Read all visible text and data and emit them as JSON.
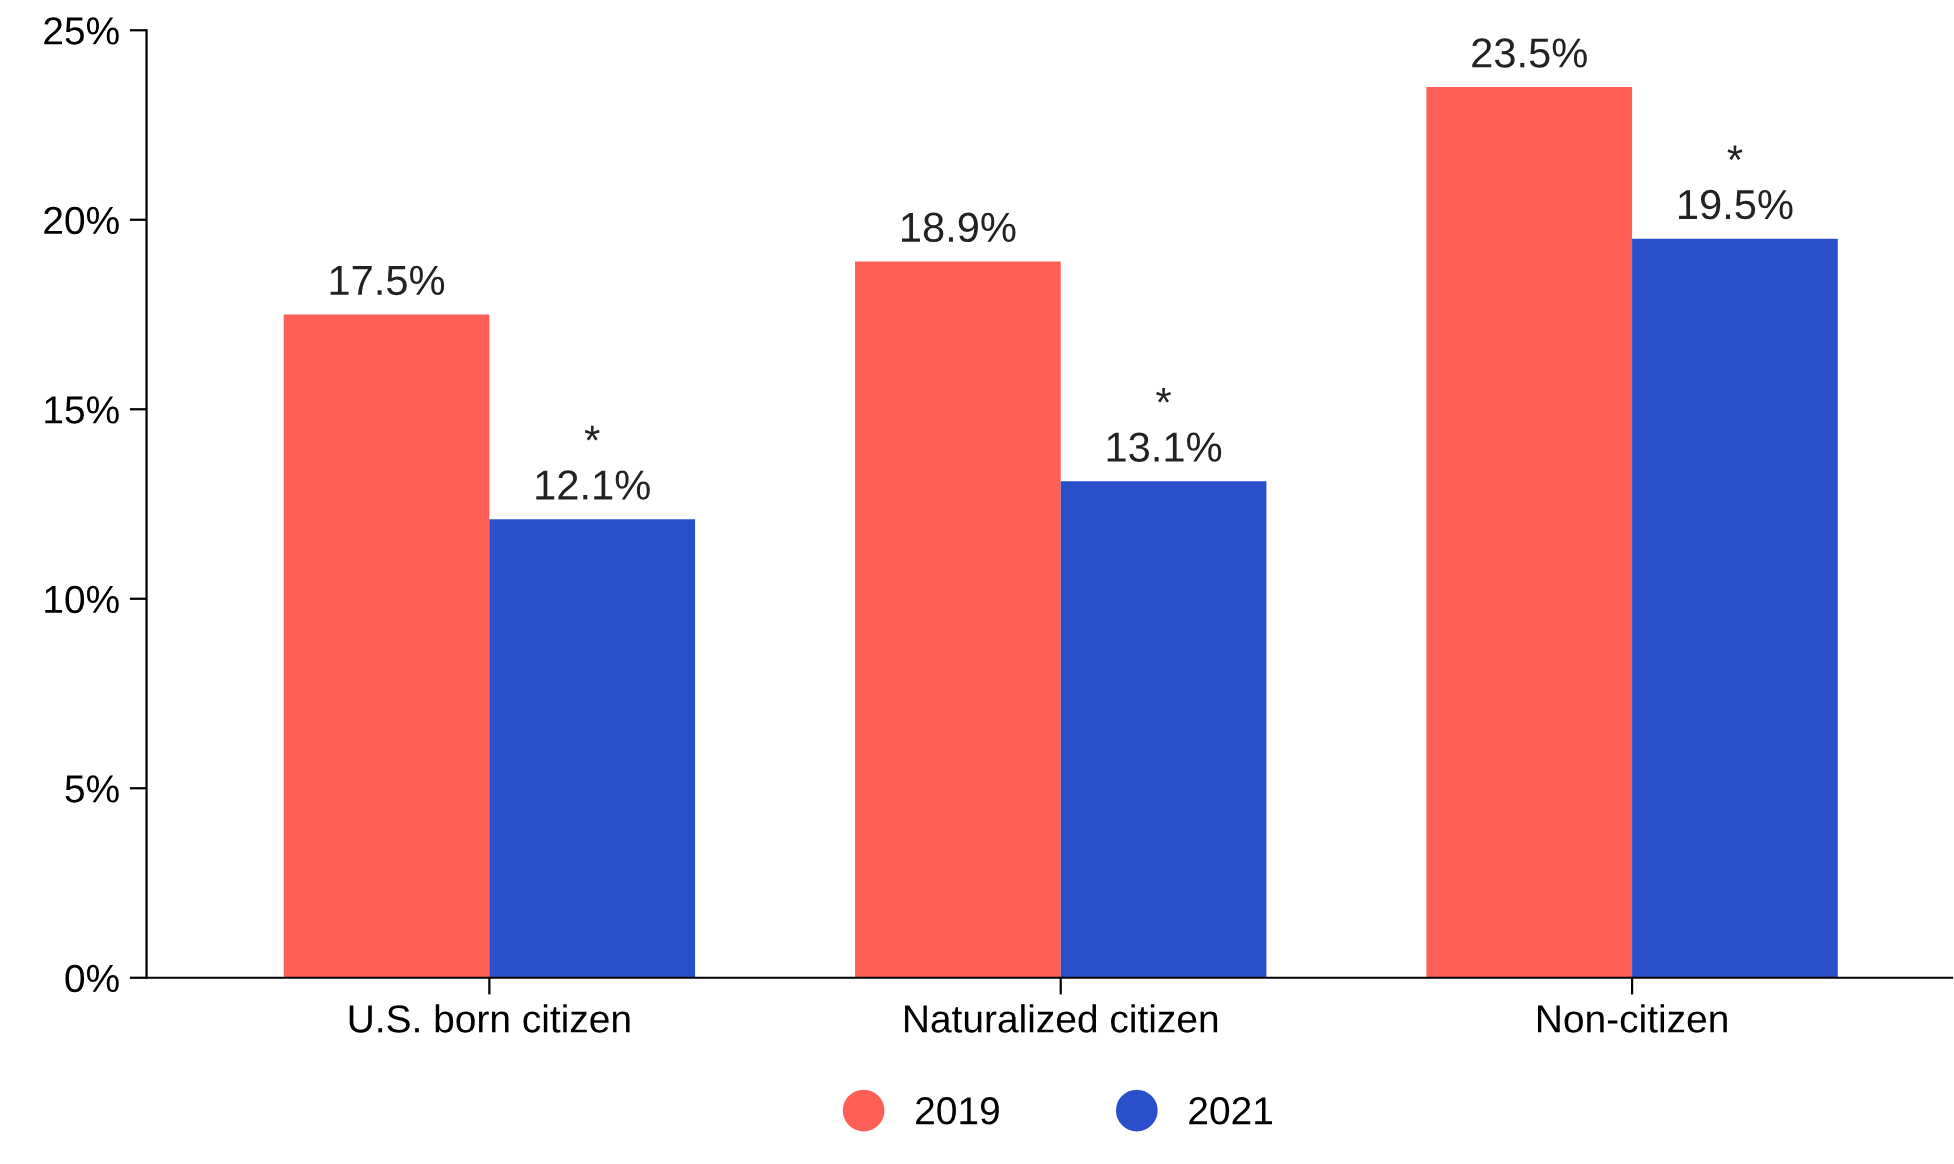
{
  "chart_data": {
    "type": "bar",
    "categories": [
      "U.S. born citizen",
      "Naturalized citizen",
      "Non-citizen"
    ],
    "series": [
      {
        "name": "2019",
        "color": "#fe5f55",
        "values": [
          17.5,
          18.9,
          23.5
        ],
        "value_labels": [
          "17.5%",
          "18.9%",
          "23.5%"
        ]
      },
      {
        "name": "2021",
        "color": "#2a4fca",
        "values": [
          12.1,
          13.1,
          19.5
        ],
        "value_labels": [
          "*\n12.1%",
          "*\n13.1%",
          "*\n19.5%"
        ]
      }
    ],
    "ylim": [
      0,
      25
    ],
    "yticks": [
      {
        "value": 0,
        "label": "0%"
      },
      {
        "value": 5,
        "label": "5%"
      },
      {
        "value": 10,
        "label": "10%"
      },
      {
        "value": 15,
        "label": "15%"
      },
      {
        "value": 20,
        "label": "20%"
      },
      {
        "value": 25,
        "label": "25%"
      }
    ],
    "grid": false,
    "legend": "bottom"
  }
}
